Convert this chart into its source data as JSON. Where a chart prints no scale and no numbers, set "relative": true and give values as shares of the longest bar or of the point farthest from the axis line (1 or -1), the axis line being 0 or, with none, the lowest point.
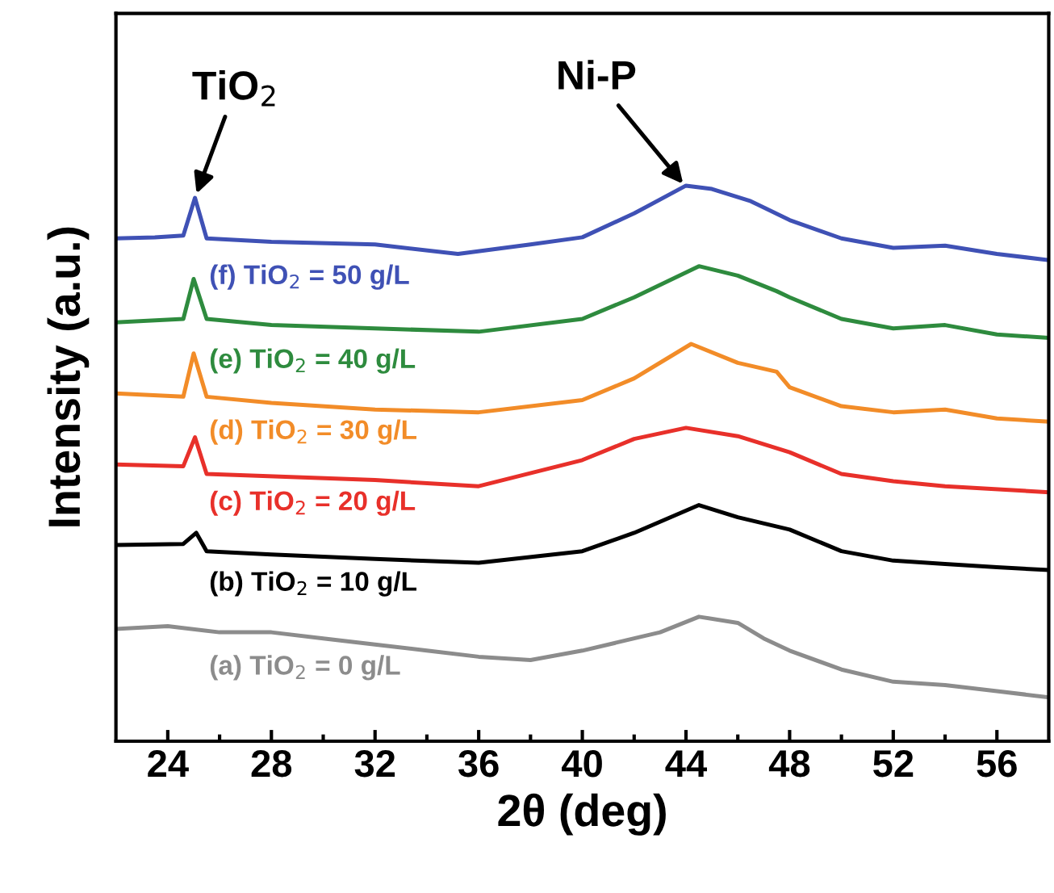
{
  "chart_data": {
    "type": "line",
    "relative": true,
    "xlabel": "2θ (deg)",
    "ylabel": "Intensity (a.u.)",
    "xlim": [
      22,
      58
    ],
    "xticks": [
      24,
      {
        "value": 26,
        "label": null
      },
      28,
      {
        "value": 30,
        "label": null
      },
      32,
      {
        "value": 34,
        "label": null
      },
      36,
      {
        "value": 38,
        "label": null
      },
      40,
      {
        "value": 42,
        "label": null
      },
      44,
      {
        "value": 46,
        "label": null
      },
      48,
      {
        "value": 50,
        "label": null
      },
      52,
      {
        "value": 54,
        "label": null
      },
      56
    ],
    "tick_labels": "x",
    "grid": false,
    "legend": false,
    "line_style": "solid",
    "marker": "none",
    "annotations": [
      {
        "text": "TiO$_{2}$",
        "x": 25.05,
        "y": 0.978
      },
      {
        "text": "Ni-P",
        "x": 44.0,
        "y": 0.997
      }
    ],
    "series": [
      {
        "name": "(f) TiO$_{2}$ = 50 g/L",
        "color": "#3f51b5",
        "x": [
          22,
          23.5,
          24.6,
          25.05,
          25.5,
          28,
          32,
          35.2,
          38,
          40,
          42,
          44,
          45,
          46.5,
          48,
          50,
          52,
          54,
          56,
          58
        ],
        "values": [
          0.905,
          0.907,
          0.91,
          0.978,
          0.905,
          0.899,
          0.894,
          0.877,
          0.894,
          0.907,
          0.95,
          1.0,
          0.994,
          0.972,
          0.938,
          0.905,
          0.888,
          0.892,
          0.877,
          0.866
        ]
      },
      {
        "name": "(e) TiO$_{2}$ = 40 g/L",
        "color": "#2e8b3e",
        "x": [
          22,
          24.6,
          25.0,
          25.5,
          28,
          32,
          36,
          40,
          42,
          44.5,
          46,
          47.5,
          48,
          50,
          52,
          54,
          56,
          58
        ],
        "values": [
          0.754,
          0.76,
          0.832,
          0.76,
          0.749,
          0.743,
          0.737,
          0.76,
          0.799,
          0.855,
          0.838,
          0.81,
          0.799,
          0.76,
          0.743,
          0.749,
          0.732,
          0.726
        ]
      },
      {
        "name": "(d) TiO$_{2}$ = 30 g/L",
        "color": "#f28c28",
        "x": [
          22,
          24.6,
          25.0,
          25.5,
          28,
          32,
          36,
          40,
          42,
          44.2,
          46,
          47.5,
          48,
          50,
          52,
          54,
          56,
          58
        ],
        "values": [
          0.626,
          0.62,
          0.698,
          0.62,
          0.609,
          0.597,
          0.592,
          0.614,
          0.653,
          0.715,
          0.681,
          0.665,
          0.637,
          0.603,
          0.592,
          0.597,
          0.581,
          0.575
        ]
      },
      {
        "name": "(c) TiO$_{2}$ = 20 g/L",
        "color": "#e8302a",
        "x": [
          22,
          24.6,
          25.05,
          25.5,
          32,
          36,
          40,
          42,
          44,
          46,
          48,
          50,
          52,
          54,
          58
        ],
        "values": [
          0.498,
          0.495,
          0.547,
          0.481,
          0.47,
          0.459,
          0.506,
          0.544,
          0.564,
          0.549,
          0.52,
          0.481,
          0.468,
          0.459,
          0.448
        ]
      },
      {
        "name": "(b) TiO$_{2}$ = 10 g/L",
        "color": "#000000",
        "x": [
          22,
          24.6,
          25.1,
          25.5,
          28,
          32,
          36,
          40,
          42,
          44.5,
          46,
          48,
          50,
          52,
          54,
          56,
          58
        ],
        "values": [
          0.353,
          0.355,
          0.375,
          0.342,
          0.336,
          0.328,
          0.321,
          0.342,
          0.375,
          0.425,
          0.403,
          0.381,
          0.342,
          0.325,
          0.319,
          0.313,
          0.308
        ]
      },
      {
        "name": "(a) TiO$_{2}$ = 0 g/L",
        "color": "#8c8c8c",
        "x": [
          22,
          24,
          26,
          28,
          30,
          32,
          34,
          36,
          38,
          40,
          42,
          43,
          44.5,
          46,
          47,
          48,
          50,
          52,
          54,
          56,
          58
        ],
        "values": [
          0.202,
          0.207,
          0.196,
          0.196,
          0.185,
          0.174,
          0.163,
          0.152,
          0.146,
          0.163,
          0.185,
          0.196,
          0.224,
          0.213,
          0.185,
          0.163,
          0.129,
          0.107,
          0.101,
          0.09,
          0.079
        ]
      }
    ]
  }
}
